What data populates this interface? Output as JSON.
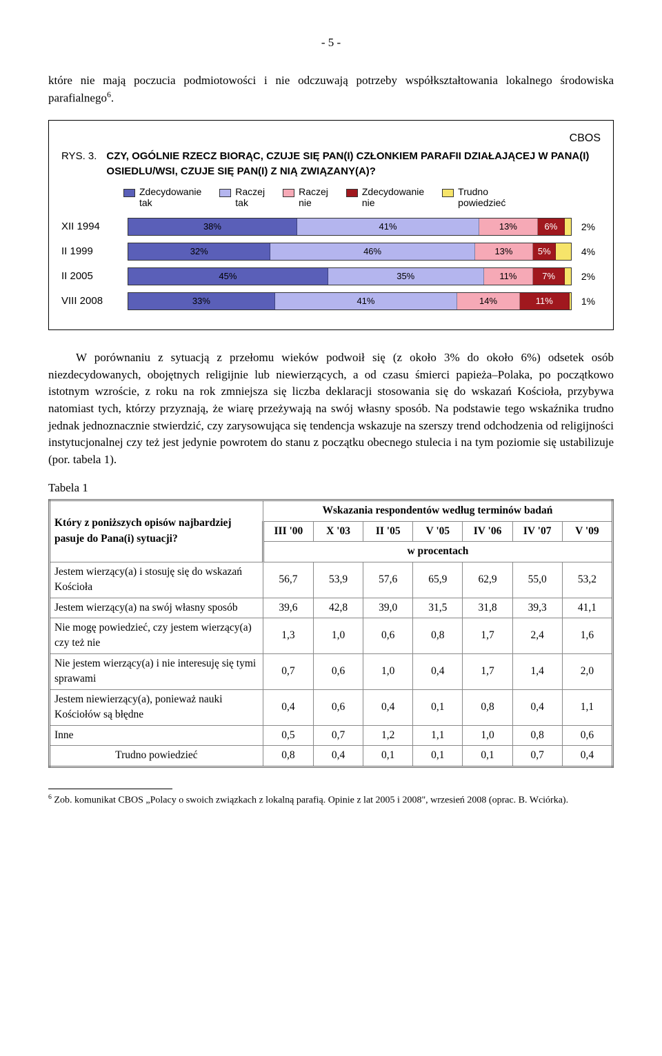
{
  "page_number": "- 5 -",
  "intro_paragraph": "które nie mają poczucia podmiotowości i nie odczuwają potrzeby współkształtowania lokalnego środowiska parafialnego",
  "intro_footref": "6",
  "chart": {
    "cbos": "CBOS",
    "rys_label": "RYS. 3.",
    "title": "CZY, OGÓLNIE RZECZ BIORĄC, CZUJE SIĘ PAN(I) CZŁONKIEM PARAFII DZIAŁAJĄCEJ W PANA(I) OSIEDLU/WSI, CZUJE SIĘ PAN(I) Z NIĄ ZWIĄZANY(A)?",
    "legend": [
      {
        "label": "Zdecydowanie\ntak",
        "color": "#5a5fb8"
      },
      {
        "label": "Raczej\ntak",
        "color": "#b4b5ee"
      },
      {
        "label": "Raczej\nnie",
        "color": "#f6a9b6"
      },
      {
        "label": "Zdecydowanie\nnie",
        "color": "#a0181e"
      },
      {
        "label": "Trudno\npowiedzieć",
        "color": "#f6e46a"
      }
    ],
    "rows": [
      {
        "label": "XII 1994",
        "values": [
          38,
          41,
          13,
          6,
          2
        ]
      },
      {
        "label": "II 1999",
        "values": [
          32,
          46,
          13,
          5,
          4
        ]
      },
      {
        "label": "II 2005",
        "values": [
          45,
          35,
          11,
          7,
          2
        ]
      },
      {
        "label": "VIII 2008",
        "values": [
          33,
          41,
          14,
          11,
          1
        ]
      }
    ]
  },
  "body_paragraph": "W porównaniu z sytuacją z przełomu wieków podwoił się (z około 3% do około 6%) odsetek osób niezdecydowanych, obojętnych religijnie lub niewierzących, a od czasu śmierci papieża–Polaka, po początkowo istotnym wzroście, z roku na rok zmniejsza się liczba deklaracji stosowania się do wskazań Kościoła, przybywa natomiast tych, którzy przyznają, że wiarę przeżywają na swój własny sposób. Na podstawie tego wskaźnika trudno jednak jednoznacznie stwierdzić, czy zarysowująca się tendencja wskazuje na szerszy trend odchodzenia od religijności instytucjonalnej czy też jest jedynie powrotem do stanu z początku obecnego stulecia i na tym poziomie się ustabilizuje (por. tabela 1).",
  "table": {
    "caption": "Tabela 1",
    "header_q": "Który z poniższych opisów najbardziej pasuje do Pana(i) sytuacji?",
    "header_span": "Wskazania respondentów według terminów badań",
    "columns": [
      "III '00",
      "X '03",
      "II '05",
      "V '05",
      "IV '06",
      "IV '07",
      "V '09"
    ],
    "subheader": "w procentach",
    "rows": [
      {
        "label": "Jestem wierzący(a) i stosuję się do wskazań Kościoła",
        "cells": [
          "56,7",
          "53,9",
          "57,6",
          "65,9",
          "62,9",
          "55,0",
          "53,2"
        ]
      },
      {
        "label": "Jestem wierzący(a) na swój własny sposób",
        "cells": [
          "39,6",
          "42,8",
          "39,0",
          "31,5",
          "31,8",
          "39,3",
          "41,1"
        ]
      },
      {
        "label": "Nie mogę powiedzieć, czy jestem wierzący(a) czy też nie",
        "cells": [
          "1,3",
          "1,0",
          "0,6",
          "0,8",
          "1,7",
          "2,4",
          "1,6"
        ]
      },
      {
        "label": "Nie jestem wierzący(a) i nie interesuję się tymi sprawami",
        "cells": [
          "0,7",
          "0,6",
          "1,0",
          "0,4",
          "1,7",
          "1,4",
          "2,0"
        ]
      },
      {
        "label": "Jestem niewierzący(a), ponieważ nauki Kościołów są błędne",
        "cells": [
          "0,4",
          "0,6",
          "0,4",
          "0,1",
          "0,8",
          "0,4",
          "1,1"
        ]
      },
      {
        "label": "Inne",
        "cells": [
          "0,5",
          "0,7",
          "1,2",
          "1,1",
          "1,0",
          "0,8",
          "0,6"
        ]
      },
      {
        "label": "Trudno powiedzieć",
        "indent": true,
        "cells": [
          "0,8",
          "0,4",
          "0,1",
          "0,1",
          "0,1",
          "0,7",
          "0,4"
        ]
      }
    ]
  },
  "footnote": {
    "ref": "6",
    "text": " Zob. komunikat CBOS „Polacy o swoich związkach z lokalną parafią. Opinie z lat 2005 i 2008\", wrzesień 2008 (oprac. B. Wciórka)."
  }
}
